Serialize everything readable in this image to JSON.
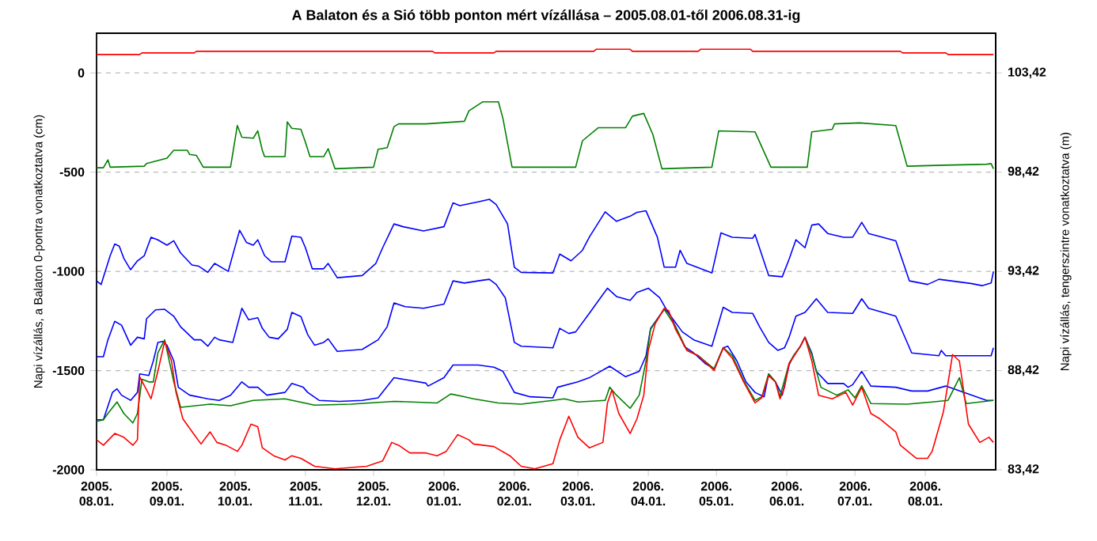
{
  "chart_data": {
    "type": "line",
    "title": "A Balaton és a Sió több ponton mért vízállása – 2005.08.01-től 2006.08.31-ig",
    "ylabel": "Napi vízállás, a Balaton 0-pontra vonatkoztatva (cm)",
    "y2label": "Napi vízállás, tengerszintre vonatkoztatva (m)",
    "xlim": [
      "2005-08-01",
      "2006-09-01"
    ],
    "xticks": [
      {
        "value": "2005-08-01",
        "label": "2005. 08.01."
      },
      {
        "value": "2005-09-01",
        "label": "2005. 09.01."
      },
      {
        "value": "2005-10-01",
        "label": "2005. 10.01."
      },
      {
        "value": "2005-11-01",
        "label": "2005. 11.01."
      },
      {
        "value": "2005-12-01",
        "label": "2005. 12.01."
      },
      {
        "value": "2006-01-01",
        "label": "2006. 01.01."
      },
      {
        "value": "2006-02-01",
        "label": "2006. 02.01."
      },
      {
        "value": "2006-03-01",
        "label": "2006. 03.01."
      },
      {
        "value": "2006-04-01",
        "label": "2006. 04.01."
      },
      {
        "value": "2006-05-01",
        "label": "2006. 05.01."
      },
      {
        "value": "2006-06-01",
        "label": "2006. 06.01."
      },
      {
        "value": "2006-07-01",
        "label": "2006. 07.01."
      },
      {
        "value": "2006-08-01",
        "label": "2006. 08.01."
      }
    ],
    "ylim": [
      -2000,
      200
    ],
    "yticks": [
      -2000,
      -1500,
      -1000,
      -500,
      0
    ],
    "y2lim": [
      83.42,
      105.42
    ],
    "y2ticks": [
      {
        "value": 83.42,
        "label": "83,42"
      },
      {
        "value": 88.42,
        "label": "88,42"
      },
      {
        "value": 93.42,
        "label": "93,42"
      },
      {
        "value": 98.42,
        "label": "98,42"
      },
      {
        "value": 103.42,
        "label": "103,42"
      }
    ],
    "grid": "y",
    "series": [
      {
        "color": "#ff0000",
        "x": [
          "2005-08-01",
          "2005-08-20",
          "2005-08-21",
          "2005-09-13",
          "2005-09-14",
          "2005-12-27",
          "2005-12-28",
          "2006-01-23",
          "2006-01-24",
          "2006-03-08",
          "2006-03-09",
          "2006-03-24",
          "2006-03-25",
          "2006-04-23",
          "2006-04-24",
          "2006-05-16",
          "2006-05-17",
          "2006-07-21",
          "2006-07-22",
          "2006-08-10",
          "2006-08-11",
          "2006-08-31"
        ],
        "values": [
          93,
          93,
          101,
          101,
          109,
          109,
          101,
          101,
          109,
          109,
          119,
          119,
          109,
          109,
          119,
          119,
          109,
          109,
          101,
          101,
          93,
          93
        ]
      },
      {
        "color": "#008000",
        "x": [
          "2005-08-01",
          "2005-08-04",
          "2005-08-06",
          "2005-08-07",
          "2005-08-22",
          "2005-08-23",
          "2005-09-01",
          "2005-09-04",
          "2005-09-10",
          "2005-09-11",
          "2005-09-14",
          "2005-09-17",
          "2005-09-29",
          "2005-10-02",
          "2005-10-04",
          "2005-10-09",
          "2005-10-11",
          "2005-10-13",
          "2005-10-14",
          "2005-10-23",
          "2005-10-24",
          "2005-10-26",
          "2005-10-30",
          "2005-11-01",
          "2005-11-03",
          "2005-11-09",
          "2005-11-11",
          "2005-11-14",
          "2005-12-01",
          "2005-12-03",
          "2005-12-07",
          "2005-12-10",
          "2005-12-12",
          "2005-12-24",
          "2006-01-10",
          "2006-01-12",
          "2006-01-18",
          "2006-01-25",
          "2006-01-27",
          "2006-01-31",
          "2006-02-28",
          "2006-03-03",
          "2006-03-10",
          "2006-03-22",
          "2006-03-25",
          "2006-03-30",
          "2006-04-03",
          "2006-04-07",
          "2006-04-29",
          "2006-05-02",
          "2006-05-18",
          "2006-05-25",
          "2006-06-10",
          "2006-06-12",
          "2006-06-21",
          "2006-06-22",
          "2006-07-03",
          "2006-07-19",
          "2006-07-24",
          "2006-08-09",
          "2006-08-28",
          "2006-08-30",
          "2006-08-31"
        ],
        "values": [
          -478,
          -478,
          -438,
          -475,
          -470,
          -457,
          -430,
          -390,
          -390,
          -411,
          -416,
          -475,
          -475,
          -265,
          -324,
          -329,
          -292,
          -390,
          -422,
          -422,
          -247,
          -279,
          -284,
          -350,
          -422,
          -422,
          -382,
          -483,
          -475,
          -385,
          -377,
          -271,
          -257,
          -257,
          -244,
          -191,
          -146,
          -146,
          -231,
          -475,
          -475,
          -342,
          -276,
          -276,
          -218,
          -204,
          -310,
          -483,
          -475,
          -292,
          -297,
          -475,
          -475,
          -297,
          -284,
          -257,
          -252,
          -265,
          -470,
          -465,
          -460,
          -457,
          -483
        ]
      },
      {
        "color": "#0000ff",
        "x": [
          "2005-08-01",
          "2005-08-03",
          "2005-08-07",
          "2005-08-09",
          "2005-08-11",
          "2005-08-13",
          "2005-08-16",
          "2005-08-19",
          "2005-08-22",
          "2005-08-25",
          "2005-08-28",
          "2005-09-01",
          "2005-09-04",
          "2005-09-07",
          "2005-09-12",
          "2005-09-15",
          "2005-09-19",
          "2005-09-22",
          "2005-09-28",
          "2005-10-03",
          "2005-10-06",
          "2005-10-09",
          "2005-10-11",
          "2005-10-14",
          "2005-10-17",
          "2005-10-23",
          "2005-10-26",
          "2005-10-30",
          "2005-11-01",
          "2005-11-04",
          "2005-11-09",
          "2005-11-11",
          "2005-11-15",
          "2005-11-26",
          "2005-12-02",
          "2005-12-05",
          "2005-12-10",
          "2005-12-14",
          "2005-12-23",
          "2006-01-01",
          "2006-01-05",
          "2006-01-08",
          "2006-01-16",
          "2006-01-21",
          "2006-01-24",
          "2006-01-29",
          "2006-02-01",
          "2006-02-04",
          "2006-02-18",
          "2006-02-21",
          "2006-02-26",
          "2006-03-03",
          "2006-03-06",
          "2006-03-13",
          "2006-03-18",
          "2006-03-24",
          "2006-03-27",
          "2006-03-31",
          "2006-04-05",
          "2006-04-08",
          "2006-04-13",
          "2006-04-15",
          "2006-04-18",
          "2006-04-29",
          "2006-05-03",
          "2006-05-08",
          "2006-05-17",
          "2006-05-18",
          "2006-05-24",
          "2006-05-30",
          "2006-06-02",
          "2006-06-05",
          "2006-06-09",
          "2006-06-12",
          "2006-06-15",
          "2006-06-19",
          "2006-06-26",
          "2006-06-30",
          "2006-07-04",
          "2006-07-07",
          "2006-07-19",
          "2006-07-25",
          "2006-08-02",
          "2006-08-07",
          "2006-08-21",
          "2006-08-26",
          "2006-08-30",
          "2006-08-31"
        ],
        "values": [
          -1048,
          -1066,
          -921,
          -862,
          -873,
          -934,
          -992,
          -947,
          -921,
          -828,
          -841,
          -868,
          -846,
          -907,
          -968,
          -974,
          -1005,
          -960,
          -1000,
          -793,
          -854,
          -868,
          -841,
          -921,
          -952,
          -952,
          -822,
          -828,
          -881,
          -987,
          -987,
          -960,
          -1032,
          -1021,
          -960,
          -881,
          -761,
          -775,
          -796,
          -775,
          -655,
          -669,
          -650,
          -637,
          -663,
          -761,
          -979,
          -1005,
          -1008,
          -913,
          -947,
          -894,
          -828,
          -700,
          -748,
          -722,
          -703,
          -695,
          -828,
          -979,
          -979,
          -894,
          -960,
          -1008,
          -806,
          -828,
          -833,
          -814,
          -1021,
          -1027,
          -939,
          -841,
          -881,
          -767,
          -761,
          -809,
          -828,
          -828,
          -753,
          -809,
          -846,
          -1048,
          -1066,
          -1040,
          -1061,
          -1072,
          -1058,
          -1000
        ]
      },
      {
        "color": "#0000ff",
        "x": [
          "2005-08-01",
          "2005-08-04",
          "2005-08-06",
          "2005-08-09",
          "2005-08-12",
          "2005-08-16",
          "2005-08-19",
          "2005-08-22",
          "2005-08-23",
          "2005-08-27",
          "2005-08-31",
          "2005-09-04",
          "2005-09-07",
          "2005-09-13",
          "2005-09-16",
          "2005-09-19",
          "2005-09-22",
          "2005-09-24",
          "2005-09-30",
          "2005-10-04",
          "2005-10-07",
          "2005-10-11",
          "2005-10-13",
          "2005-10-16",
          "2005-10-20",
          "2005-10-24",
          "2005-10-26",
          "2005-10-30",
          "2005-11-02",
          "2005-11-05",
          "2005-11-09",
          "2005-11-11",
          "2005-11-15",
          "2005-11-26",
          "2005-12-03",
          "2005-12-07",
          "2005-12-10",
          "2005-12-15",
          "2005-12-23",
          "2006-01-01",
          "2006-01-05",
          "2006-01-10",
          "2006-01-16",
          "2006-01-21",
          "2006-01-24",
          "2006-01-28",
          "2006-02-01",
          "2006-02-04",
          "2006-02-18",
          "2006-02-21",
          "2006-02-25",
          "2006-02-28",
          "2006-03-06",
          "2006-03-14",
          "2006-03-18",
          "2006-03-24",
          "2006-03-27",
          "2006-04-01",
          "2006-04-06",
          "2006-04-10",
          "2006-04-16",
          "2006-04-21",
          "2006-04-29",
          "2006-05-04",
          "2006-05-08",
          "2006-05-17",
          "2006-05-20",
          "2006-05-24",
          "2006-05-28",
          "2006-05-31",
          "2006-06-02",
          "2006-06-05",
          "2006-06-09",
          "2006-06-14",
          "2006-06-19",
          "2006-06-30",
          "2006-07-04",
          "2006-07-07",
          "2006-07-19",
          "2006-07-26",
          "2006-08-07",
          "2006-08-08",
          "2006-08-10",
          "2006-08-30",
          "2006-08-31"
        ],
        "values": [
          -1430,
          -1430,
          -1345,
          -1252,
          -1271,
          -1372,
          -1332,
          -1340,
          -1239,
          -1194,
          -1191,
          -1226,
          -1279,
          -1345,
          -1345,
          -1377,
          -1332,
          -1345,
          -1358,
          -1186,
          -1244,
          -1234,
          -1287,
          -1332,
          -1340,
          -1292,
          -1207,
          -1228,
          -1319,
          -1372,
          -1358,
          -1340,
          -1403,
          -1393,
          -1345,
          -1279,
          -1159,
          -1178,
          -1186,
          -1165,
          -1048,
          -1059,
          -1048,
          -1040,
          -1066,
          -1133,
          -1358,
          -1377,
          -1385,
          -1287,
          -1313,
          -1305,
          -1212,
          -1085,
          -1127,
          -1146,
          -1106,
          -1085,
          -1133,
          -1212,
          -1305,
          -1345,
          -1377,
          -1181,
          -1207,
          -1212,
          -1279,
          -1358,
          -1398,
          -1385,
          -1332,
          -1226,
          -1207,
          -1138,
          -1207,
          -1212,
          -1138,
          -1186,
          -1226,
          -1411,
          -1425,
          -1398,
          -1425,
          -1425,
          -1385
        ]
      },
      {
        "color": "#0000ff",
        "x": [
          "2005-08-01",
          "2005-08-04",
          "2005-08-08",
          "2005-08-10",
          "2005-08-12",
          "2005-08-16",
          "2005-08-19",
          "2005-08-20",
          "2005-08-24",
          "2005-08-26",
          "2005-08-28",
          "2005-08-30",
          "2005-09-01",
          "2005-09-04",
          "2005-09-06",
          "2005-09-11",
          "2005-09-19",
          "2005-09-24",
          "2005-09-29",
          "2005-10-04",
          "2005-10-07",
          "2005-10-11",
          "2005-10-15",
          "2005-10-23",
          "2005-10-26",
          "2005-10-31",
          "2005-11-02",
          "2005-11-07",
          "2005-11-16",
          "2005-11-26",
          "2005-12-03",
          "2005-12-10",
          "2005-12-24",
          "2005-12-25",
          "2006-01-01",
          "2006-01-05",
          "2006-01-16",
          "2006-01-23",
          "2006-01-27",
          "2006-02-01",
          "2006-02-08",
          "2006-02-18",
          "2006-02-20",
          "2006-03-01",
          "2006-03-06",
          "2006-03-15",
          "2006-03-22",
          "2006-03-28",
          "2006-03-31",
          "2006-04-02",
          "2006-04-08",
          "2006-04-10",
          "2006-04-13",
          "2006-04-17",
          "2006-04-21",
          "2006-04-26",
          "2006-04-30",
          "2006-05-04",
          "2006-05-06",
          "2006-05-10",
          "2006-05-14",
          "2006-05-18",
          "2006-05-22",
          "2006-05-24",
          "2006-05-27",
          "2006-05-30",
          "2006-06-02",
          "2006-06-04",
          "2006-06-07",
          "2006-06-09",
          "2006-06-12",
          "2006-06-14",
          "2006-06-19",
          "2006-06-26",
          "2006-06-28",
          "2006-06-30",
          "2006-07-04",
          "2006-07-08",
          "2006-07-19",
          "2006-07-26",
          "2006-08-02",
          "2006-08-10",
          "2006-08-28",
          "2006-08-31"
        ],
        "values": [
          -1748,
          -1748,
          -1610,
          -1592,
          -1624,
          -1650,
          -1610,
          -1517,
          -1525,
          -1451,
          -1358,
          -1353,
          -1372,
          -1451,
          -1584,
          -1624,
          -1642,
          -1650,
          -1624,
          -1557,
          -1584,
          -1584,
          -1624,
          -1610,
          -1565,
          -1584,
          -1610,
          -1650,
          -1655,
          -1650,
          -1637,
          -1536,
          -1563,
          -1578,
          -1536,
          -1472,
          -1472,
          -1483,
          -1504,
          -1610,
          -1632,
          -1637,
          -1584,
          -1557,
          -1536,
          -1478,
          -1531,
          -1504,
          -1425,
          -1287,
          -1191,
          -1207,
          -1279,
          -1380,
          -1411,
          -1464,
          -1491,
          -1385,
          -1377,
          -1451,
          -1557,
          -1610,
          -1632,
          -1517,
          -1557,
          -1624,
          -1472,
          -1425,
          -1377,
          -1332,
          -1411,
          -1504,
          -1565,
          -1565,
          -1584,
          -1571,
          -1504,
          -1578,
          -1584,
          -1603,
          -1603,
          -1578,
          -1650,
          -1650
        ]
      },
      {
        "color": "#008000",
        "x": [
          "2005-08-01",
          "2005-08-04",
          "2005-08-06",
          "2005-08-10",
          "2005-08-13",
          "2005-08-17",
          "2005-08-19",
          "2005-08-21",
          "2005-08-24",
          "2005-08-26",
          "2005-08-28",
          "2005-08-31",
          "2005-09-01",
          "2005-09-04",
          "2005-09-07",
          "2005-09-20",
          "2005-09-29",
          "2005-10-09",
          "2005-10-23",
          "2005-11-05",
          "2005-11-21",
          "2005-12-10",
          "2005-12-29",
          "2006-01-04",
          "2006-01-09",
          "2006-01-14",
          "2006-01-25",
          "2006-02-04",
          "2006-02-18",
          "2006-02-23",
          "2006-03-01",
          "2006-03-13",
          "2006-03-15",
          "2006-03-18",
          "2006-03-24",
          "2006-03-28",
          "2006-03-31",
          "2006-04-02",
          "2006-04-08",
          "2006-04-13",
          "2006-04-18",
          "2006-04-23",
          "2006-04-30",
          "2006-05-04",
          "2006-05-08",
          "2006-05-13",
          "2006-05-18",
          "2006-05-21",
          "2006-05-24",
          "2006-05-27",
          "2006-05-29",
          "2006-06-02",
          "2006-06-04",
          "2006-06-07",
          "2006-06-09",
          "2006-06-12",
          "2006-06-16",
          "2006-06-23",
          "2006-06-28",
          "2006-07-01",
          "2006-07-04",
          "2006-07-08",
          "2006-07-24",
          "2006-08-04",
          "2006-08-11",
          "2006-08-16",
          "2006-08-19",
          "2006-08-31"
        ],
        "values": [
          -1756,
          -1748,
          -1716,
          -1658,
          -1716,
          -1764,
          -1716,
          -1544,
          -1557,
          -1557,
          -1411,
          -1345,
          -1398,
          -1557,
          -1685,
          -1669,
          -1677,
          -1650,
          -1642,
          -1674,
          -1669,
          -1655,
          -1663,
          -1618,
          -1629,
          -1642,
          -1663,
          -1669,
          -1650,
          -1642,
          -1658,
          -1650,
          -1584,
          -1624,
          -1690,
          -1624,
          -1451,
          -1292,
          -1191,
          -1279,
          -1398,
          -1425,
          -1491,
          -1385,
          -1425,
          -1550,
          -1650,
          -1632,
          -1517,
          -1557,
          -1630,
          -1464,
          -1425,
          -1377,
          -1332,
          -1419,
          -1584,
          -1624,
          -1597,
          -1637,
          -1576,
          -1666,
          -1669,
          -1658,
          -1650,
          -1536,
          -1666,
          -1650
        ]
      },
      {
        "color": "#ff0000",
        "x": [
          "2005-08-01",
          "2005-08-04",
          "2005-08-09",
          "2005-08-13",
          "2005-08-17",
          "2005-08-19",
          "2005-08-20",
          "2005-08-23",
          "2005-08-25",
          "2005-08-28",
          "2005-08-31",
          "2005-09-03",
          "2005-09-05",
          "2005-09-08",
          "2005-09-13",
          "2005-09-16",
          "2005-09-20",
          "2005-09-23",
          "2005-09-27",
          "2005-10-02",
          "2005-10-04",
          "2005-10-08",
          "2005-10-11",
          "2005-10-13",
          "2005-10-18",
          "2005-10-23",
          "2005-10-26",
          "2005-10-30",
          "2005-11-05",
          "2005-11-14",
          "2005-11-28",
          "2005-12-05",
          "2005-12-09",
          "2005-12-12",
          "2005-12-17",
          "2005-12-24",
          "2005-12-29",
          "2006-01-02",
          "2006-01-07",
          "2006-01-12",
          "2006-01-14",
          "2006-01-23",
          "2006-01-30",
          "2006-02-04",
          "2006-02-10",
          "2006-02-18",
          "2006-02-21",
          "2006-02-25",
          "2006-03-01",
          "2006-03-06",
          "2006-03-12",
          "2006-03-14",
          "2006-03-16",
          "2006-03-19",
          "2006-03-24",
          "2006-03-27",
          "2006-03-30",
          "2006-04-01",
          "2006-04-04",
          "2006-04-08",
          "2006-04-10",
          "2006-04-13",
          "2006-04-18",
          "2006-04-23",
          "2006-04-30",
          "2006-05-04",
          "2006-05-08",
          "2006-05-13",
          "2006-05-18",
          "2006-05-21",
          "2006-05-24",
          "2006-05-27",
          "2006-05-29",
          "2006-05-31",
          "2006-06-02",
          "2006-06-04",
          "2006-06-07",
          "2006-06-09",
          "2006-06-12",
          "2006-06-15",
          "2006-06-21",
          "2006-06-27",
          "2006-06-30",
          "2006-07-04",
          "2006-07-08",
          "2006-07-12",
          "2006-07-19",
          "2006-07-21",
          "2006-07-28",
          "2006-08-02",
          "2006-08-04",
          "2006-08-09",
          "2006-08-13",
          "2006-08-16",
          "2006-08-20",
          "2006-08-25",
          "2006-08-29",
          "2006-08-31"
        ],
        "values": [
          -1849,
          -1876,
          -1817,
          -1836,
          -1876,
          -1849,
          -1531,
          -1597,
          -1642,
          -1504,
          -1353,
          -1451,
          -1610,
          -1743,
          -1823,
          -1870,
          -1809,
          -1862,
          -1876,
          -1907,
          -1876,
          -1770,
          -1783,
          -1889,
          -1929,
          -1950,
          -1929,
          -1942,
          -1982,
          -1995,
          -1982,
          -1955,
          -1862,
          -1876,
          -1915,
          -1915,
          -1929,
          -1907,
          -1823,
          -1849,
          -1870,
          -1883,
          -1929,
          -1982,
          -1995,
          -1969,
          -1849,
          -1730,
          -1836,
          -1889,
          -1862,
          -1663,
          -1597,
          -1716,
          -1817,
          -1743,
          -1624,
          -1398,
          -1265,
          -1186,
          -1199,
          -1292,
          -1398,
          -1425,
          -1499,
          -1385,
          -1438,
          -1557,
          -1663,
          -1637,
          -1526,
          -1557,
          -1642,
          -1584,
          -1464,
          -1430,
          -1377,
          -1332,
          -1451,
          -1624,
          -1642,
          -1610,
          -1674,
          -1584,
          -1716,
          -1743,
          -1809,
          -1876,
          -1942,
          -1942,
          -1907,
          -1706,
          -1419,
          -1451,
          -1770,
          -1862,
          -1836,
          -1862
        ]
      }
    ]
  }
}
